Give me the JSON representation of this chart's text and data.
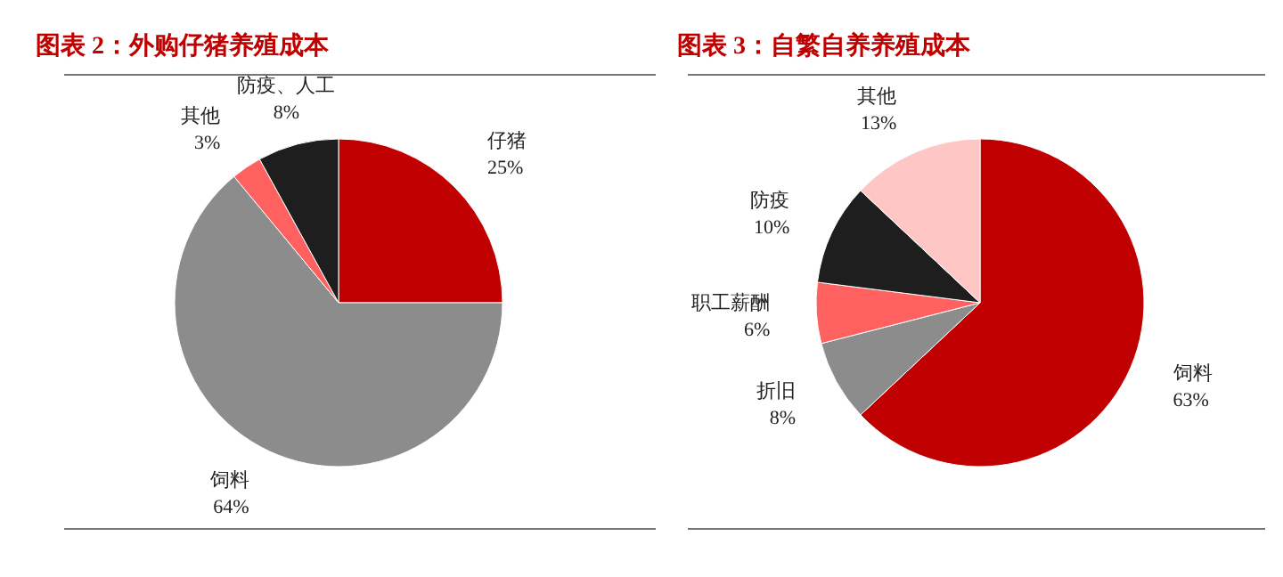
{
  "chart_data": [
    {
      "type": "pie",
      "title": "图表 2：外购仔猪养殖成本",
      "categories": [
        "仔猪",
        "饲料",
        "其他",
        "防疫、人工"
      ],
      "values": [
        25,
        64,
        3,
        8
      ],
      "colors": [
        "#c00000",
        "#8c8c8c",
        "#ff6161",
        "#1e1e1e"
      ],
      "value_labels": [
        "25%",
        "64%",
        "3%",
        "8%"
      ]
    },
    {
      "type": "pie",
      "title": "图表 3：自繁自养养殖成本",
      "categories": [
        "饲料",
        "折旧",
        "职工薪酬",
        "防疫",
        "其他"
      ],
      "values": [
        63,
        8,
        6,
        10,
        13
      ],
      "colors": [
        "#c00000",
        "#8c8c8c",
        "#ff6161",
        "#1e1e1e",
        "#ffc6c6"
      ],
      "value_labels": [
        "63%",
        "8%",
        "6%",
        "10%",
        "13%"
      ]
    }
  ]
}
